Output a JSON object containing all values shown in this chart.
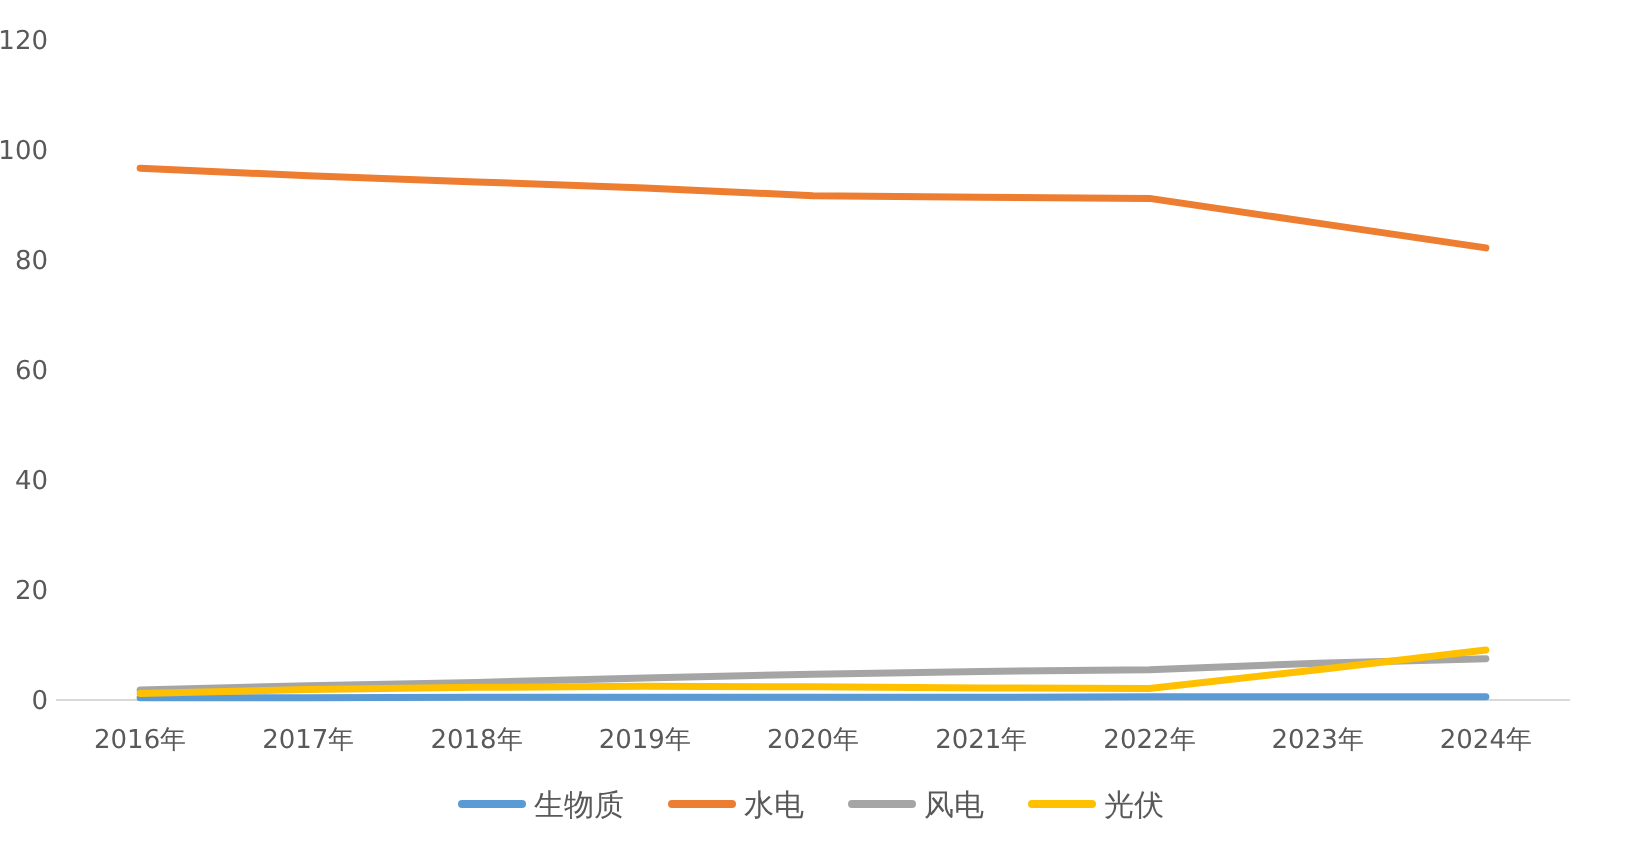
{
  "chart_data": {
    "type": "line",
    "categories": [
      "2016年",
      "2017年",
      "2018年",
      "2019年",
      "2020年",
      "2021年",
      "2022年",
      "2023年",
      "2024年"
    ],
    "series": [
      {
        "name": "生物质",
        "color": "#5b9bd5",
        "values": [
          0.4,
          0.4,
          0.5,
          0.5,
          0.5,
          0.5,
          0.6,
          0.6,
          0.6
        ]
      },
      {
        "name": "水电",
        "color": "#ed7d31",
        "values": [
          96.7,
          95.3,
          94.2,
          93.1,
          91.7,
          91.4,
          91.2,
          86.7,
          82.2
        ]
      },
      {
        "name": "风电",
        "color": "#a5a5a5",
        "values": [
          1.8,
          2.6,
          3.2,
          4.0,
          4.7,
          5.2,
          5.5,
          6.7,
          7.5
        ]
      },
      {
        "name": "光伏",
        "color": "#ffc000",
        "values": [
          1.2,
          1.9,
          2.3,
          2.5,
          2.4,
          2.2,
          2.1,
          5.5,
          9.1
        ]
      }
    ],
    "ylim": [
      0,
      120
    ],
    "yticks": [
      0,
      20,
      40,
      60,
      80,
      100,
      120
    ],
    "legend": "bottom"
  }
}
